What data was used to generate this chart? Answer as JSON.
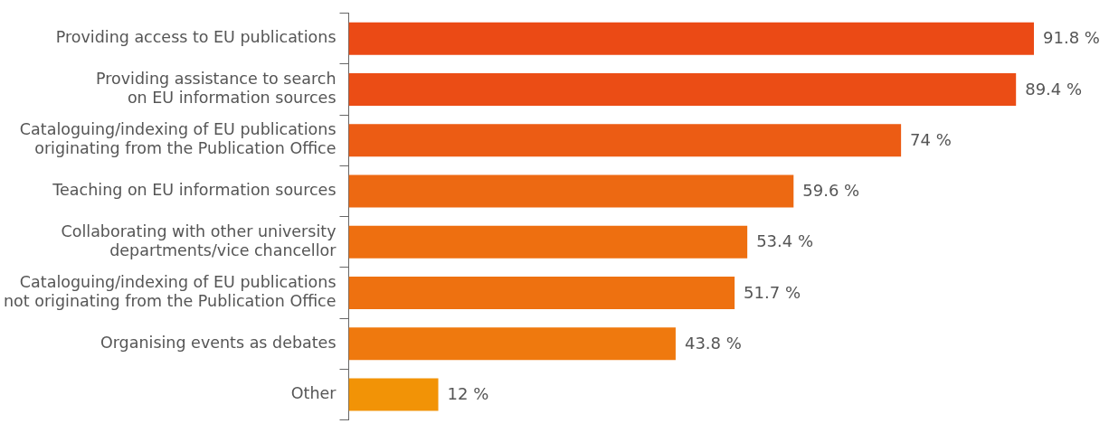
{
  "chart_data": {
    "type": "bar",
    "orientation": "horizontal",
    "categories": [
      "Providing access to EU publications",
      "Providing assistance to search\non EU information sources",
      "Cataloguing/indexing of EU publications\noriginating from the Publication Office",
      "Teaching on EU information sources",
      "Collaborating with other university\ndepartments/vice chancellor",
      "Cataloguing/indexing of EU publications\nnot originating from the Publication Office",
      "Organising events as debates",
      "Other"
    ],
    "values": [
      91.8,
      89.4,
      74,
      59.6,
      53.4,
      51.7,
      43.8,
      12
    ],
    "value_labels": [
      "91.8 %",
      "89.4 %",
      "74 %",
      "59.6 %",
      "53.4 %",
      "51.7 %",
      "43.8 %",
      "12 %"
    ],
    "colors": [
      "#eb4a15",
      "#eb4d15",
      "#ec5c14",
      "#ed6912",
      "#ee6f10",
      "#ee7110",
      "#ef790e",
      "#f29306"
    ],
    "tick_labels": "y"
  }
}
